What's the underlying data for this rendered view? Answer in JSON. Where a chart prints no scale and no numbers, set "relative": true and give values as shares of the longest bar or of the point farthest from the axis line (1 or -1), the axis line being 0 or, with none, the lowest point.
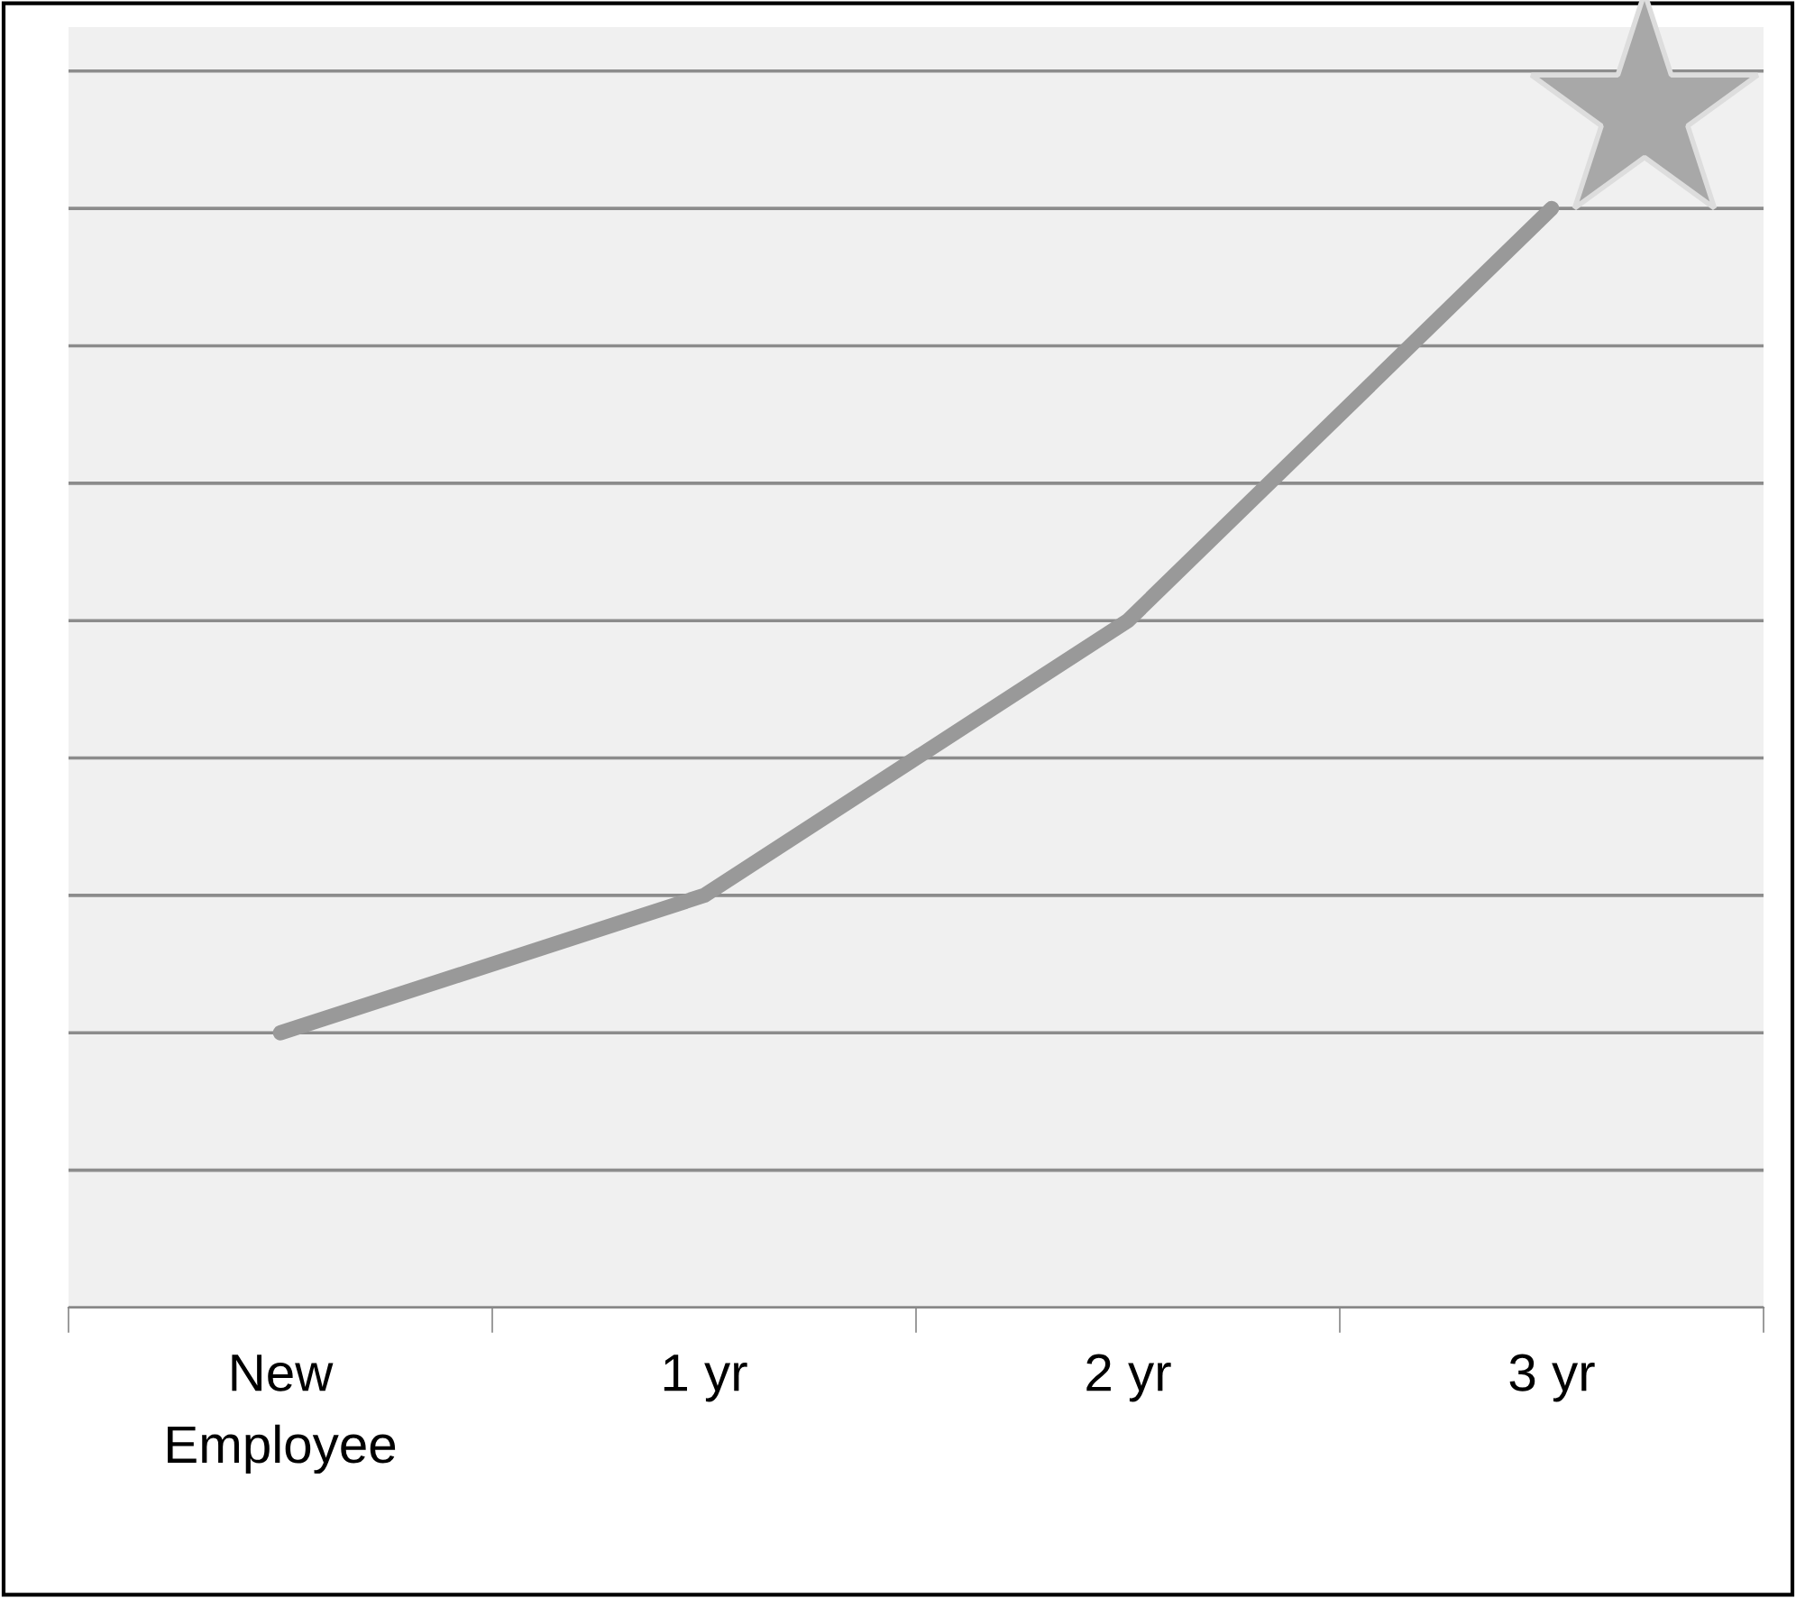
{
  "chart_data": {
    "type": "line",
    "relative": true,
    "categories": [
      "New\nEmployee",
      "1 yr",
      "2 yr",
      "3 yr"
    ],
    "series": [
      {
        "color": "#999999",
        "values": [
          0.25,
          0.375,
          0.625,
          1
        ]
      }
    ],
    "grid": "y",
    "marker": "none",
    "line_style": "solid",
    "legend": false
  }
}
